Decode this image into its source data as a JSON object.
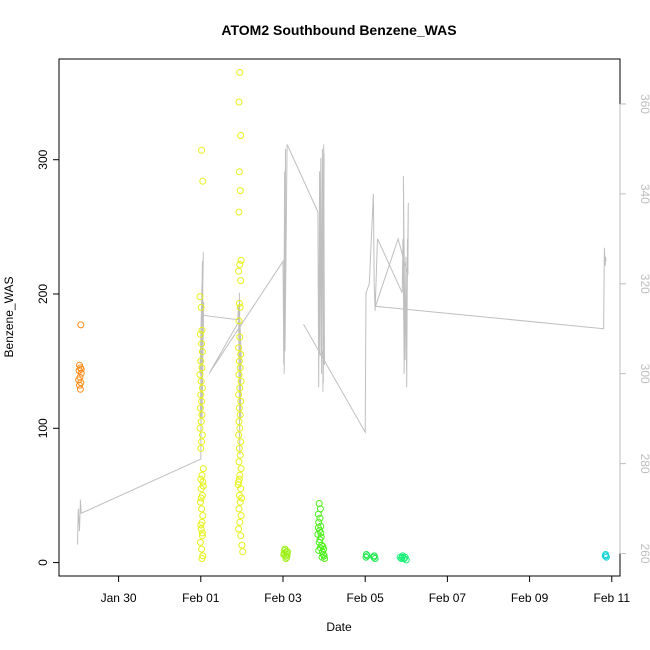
{
  "chart_data": {
    "type": "scatter",
    "title": "ATOM2 Southbound Benzene_WAS",
    "xlabel": "Date",
    "ylabel": "Benzene_WAS",
    "x_ticks": [
      "Jan 30",
      "Feb 01",
      "Feb 03",
      "Feb 05",
      "Feb 07",
      "Feb 09",
      "Feb 11"
    ],
    "x_tick_days": [
      0,
      2,
      4,
      6,
      8,
      10,
      12
    ],
    "xlim_days": [
      -1.45,
      12.2
    ],
    "x_origin_date": "Jan 30",
    "y_ticks": [
      0,
      100,
      200,
      300
    ],
    "ylim": [
      -10,
      375
    ],
    "y2_ticks": [
      260,
      280,
      300,
      320,
      340,
      360
    ],
    "y2lim": [
      255,
      370
    ],
    "grid": false,
    "legend": "none",
    "colors": {
      "line": "#bfbfbf",
      "axis": "#000000",
      "right_axis": "#bdbdbd"
    },
    "series": [
      {
        "color": "#ff8c1a",
        "points": [
          [
            -0.92,
            177
          ],
          [
            -0.95,
            147
          ],
          [
            -0.93,
            145
          ],
          [
            -0.96,
            143
          ],
          [
            -0.91,
            141
          ],
          [
            -0.94,
            138
          ],
          [
            -0.97,
            136
          ],
          [
            -0.92,
            134
          ],
          [
            -0.95,
            132
          ],
          [
            -0.93,
            129
          ],
          [
            -0.91,
            144
          ]
        ]
      },
      {
        "color": "#e6f21a",
        "points": [
          [
            2.02,
            307
          ],
          [
            2.05,
            284
          ],
          [
            1.98,
            198
          ],
          [
            2.01,
            190
          ],
          [
            2.03,
            173
          ],
          [
            1.99,
            170
          ],
          [
            2.02,
            163
          ],
          [
            2.04,
            157
          ],
          [
            2.0,
            150
          ],
          [
            2.03,
            145
          ],
          [
            1.98,
            140
          ],
          [
            2.01,
            135
          ],
          [
            2.04,
            130
          ],
          [
            2.0,
            125
          ],
          [
            2.02,
            120
          ],
          [
            1.99,
            115
          ],
          [
            2.03,
            110
          ],
          [
            2.01,
            105
          ],
          [
            1.98,
            100
          ],
          [
            2.04,
            95
          ],
          [
            2.02,
            90
          ],
          [
            2.0,
            85
          ],
          [
            2.06,
            70
          ],
          [
            2.03,
            65
          ],
          [
            2.05,
            60
          ],
          [
            2.01,
            55
          ],
          [
            2.04,
            50
          ],
          [
            1.99,
            45
          ],
          [
            2.02,
            40
          ],
          [
            2.05,
            35
          ],
          [
            2.03,
            30
          ],
          [
            2.01,
            25
          ],
          [
            2.04,
            20
          ],
          [
            1.99,
            15
          ],
          [
            2.02,
            10
          ],
          [
            2.05,
            5
          ],
          [
            2.03,
            3
          ],
          [
            2.0,
            62
          ],
          [
            2.06,
            57
          ],
          [
            2.01,
            48
          ],
          [
            2.04,
            22
          ],
          [
            2.0,
            28
          ],
          [
            2.95,
            365
          ],
          [
            2.93,
            343
          ],
          [
            2.97,
            318
          ],
          [
            2.94,
            291
          ],
          [
            2.96,
            277
          ],
          [
            2.93,
            261
          ],
          [
            2.98,
            225
          ],
          [
            2.95,
            222
          ],
          [
            2.92,
            217
          ],
          [
            2.97,
            210
          ],
          [
            2.94,
            193
          ],
          [
            2.96,
            190
          ],
          [
            2.93,
            180
          ],
          [
            2.95,
            168
          ],
          [
            2.92,
            160
          ],
          [
            2.97,
            155
          ],
          [
            2.94,
            150
          ],
          [
            2.96,
            145
          ],
          [
            2.93,
            140
          ],
          [
            2.98,
            135
          ],
          [
            2.95,
            130
          ],
          [
            2.92,
            125
          ],
          [
            2.97,
            120
          ],
          [
            2.94,
            115
          ],
          [
            2.96,
            110
          ],
          [
            2.93,
            105
          ],
          [
            2.95,
            100
          ],
          [
            2.92,
            95
          ],
          [
            2.97,
            90
          ],
          [
            2.94,
            85
          ],
          [
            2.96,
            80
          ],
          [
            2.93,
            75
          ],
          [
            2.98,
            70
          ],
          [
            2.95,
            65
          ],
          [
            2.92,
            60
          ],
          [
            2.97,
            55
          ],
          [
            2.94,
            50
          ],
          [
            2.96,
            45
          ],
          [
            2.93,
            40
          ],
          [
            2.98,
            35
          ],
          [
            2.95,
            30
          ],
          [
            2.92,
            25
          ],
          [
            2.97,
            20
          ],
          [
            3.0,
            13
          ],
          [
            3.02,
            8
          ],
          [
            2.94,
            62
          ],
          [
            2.91,
            58
          ],
          [
            2.99,
            48
          ]
        ]
      },
      {
        "color": "#9ef01a",
        "points": [
          [
            4.05,
            10
          ],
          [
            4.08,
            8
          ],
          [
            4.03,
            7
          ],
          [
            4.1,
            6
          ],
          [
            4.06,
            5
          ],
          [
            4.09,
            4
          ],
          [
            4.04,
            9
          ],
          [
            4.07,
            3
          ],
          [
            4.11,
            8
          ],
          [
            4.02,
            6
          ]
        ]
      },
      {
        "color": "#4cf01a",
        "points": [
          [
            4.88,
            44
          ],
          [
            4.91,
            40
          ],
          [
            4.86,
            36
          ],
          [
            4.9,
            33
          ],
          [
            4.87,
            30
          ],
          [
            4.92,
            27
          ],
          [
            4.89,
            24
          ],
          [
            4.85,
            21
          ],
          [
            4.93,
            19
          ],
          [
            4.9,
            17
          ],
          [
            4.88,
            15
          ],
          [
            4.94,
            13
          ],
          [
            4.91,
            11
          ],
          [
            4.87,
            9
          ],
          [
            4.96,
            8
          ],
          [
            4.98,
            6
          ],
          [
            5.0,
            5
          ],
          [
            4.95,
            4
          ],
          [
            5.01,
            3
          ],
          [
            4.97,
            12
          ],
          [
            4.99,
            10
          ],
          [
            4.92,
            22
          ],
          [
            4.86,
            26
          ]
        ]
      },
      {
        "color": "#1ae84a",
        "points": [
          [
            6.03,
            6
          ],
          [
            6.05,
            5
          ],
          [
            6.02,
            4
          ],
          [
            6.22,
            5
          ],
          [
            6.24,
            3
          ],
          [
            6.21,
            4
          ]
        ]
      },
      {
        "color": "#1af07a",
        "points": [
          [
            6.85,
            4
          ],
          [
            6.88,
            3
          ],
          [
            6.91,
            5
          ],
          [
            6.94,
            3
          ],
          [
            6.97,
            4
          ],
          [
            7.0,
            2
          ],
          [
            6.9,
            4
          ],
          [
            6.95,
            3
          ]
        ]
      },
      {
        "color": "#1ad6d6",
        "points": [
          [
            11.85,
            6
          ],
          [
            11.87,
            4
          ],
          [
            11.86,
            5
          ],
          [
            11.84,
            5
          ]
        ]
      }
    ],
    "line_series": {
      "axis": "right",
      "points": [
        [
          -1.0,
          262
        ],
        [
          -0.98,
          270
        ],
        [
          -0.95,
          265
        ],
        [
          -0.93,
          272
        ],
        [
          -0.91,
          269
        ],
        [
          -0.9,
          269
        ],
        [
          2.0,
          281
        ],
        [
          2.02,
          312
        ],
        [
          1.98,
          300
        ],
        [
          2.03,
          320
        ],
        [
          1.99,
          290
        ],
        [
          2.04,
          325
        ],
        [
          2.0,
          285
        ],
        [
          2.05,
          318
        ],
        [
          2.01,
          295
        ],
        [
          2.06,
          327
        ],
        [
          2.02,
          305
        ],
        [
          2.07,
          316
        ],
        [
          2.03,
          290
        ],
        [
          2.05,
          313
        ],
        [
          2.9,
          312
        ],
        [
          2.92,
          315
        ],
        [
          2.95,
          282
        ],
        [
          2.93,
          310
        ],
        [
          2.97,
          290
        ],
        [
          2.94,
          318
        ],
        [
          2.96,
          293
        ],
        [
          2.98,
          305
        ],
        [
          2.95,
          312
        ],
        [
          2.2,
          300
        ],
        [
          4.0,
          325
        ],
        [
          4.02,
          302
        ],
        [
          4.04,
          345
        ],
        [
          4.03,
          300
        ],
        [
          4.06,
          350
        ],
        [
          4.05,
          305
        ],
        [
          4.1,
          351
        ],
        [
          4.85,
          336
        ],
        [
          4.87,
          297
        ],
        [
          4.89,
          345
        ],
        [
          4.9,
          304
        ],
        [
          4.92,
          348
        ],
        [
          4.94,
          300
        ],
        [
          4.96,
          350
        ],
        [
          4.98,
          298
        ],
        [
          5.0,
          349
        ],
        [
          4.97,
          296
        ],
        [
          4.99,
          351
        ],
        [
          5.01,
          302
        ],
        [
          4.95,
          305
        ],
        [
          5.0,
          303
        ],
        [
          4.5,
          311
        ],
        [
          6.0,
          287
        ],
        [
          6.02,
          318
        ],
        [
          6.1,
          320
        ],
        [
          6.2,
          340
        ],
        [
          6.22,
          320
        ],
        [
          6.24,
          314
        ],
        [
          6.3,
          330
        ],
        [
          6.9,
          318
        ],
        [
          6.92,
          330
        ],
        [
          6.95,
          300
        ],
        [
          6.93,
          344
        ],
        [
          6.97,
          303
        ],
        [
          6.99,
          326
        ],
        [
          7.01,
          297
        ],
        [
          7.03,
          330
        ],
        [
          7.02,
          316
        ],
        [
          7.05,
          338
        ],
        [
          7.04,
          322
        ],
        [
          6.8,
          330
        ],
        [
          6.25,
          315
        ],
        [
          11.8,
          310
        ],
        [
          11.82,
          328
        ],
        [
          11.84,
          324
        ],
        [
          11.85,
          326
        ],
        [
          11.86,
          325
        ]
      ]
    }
  }
}
